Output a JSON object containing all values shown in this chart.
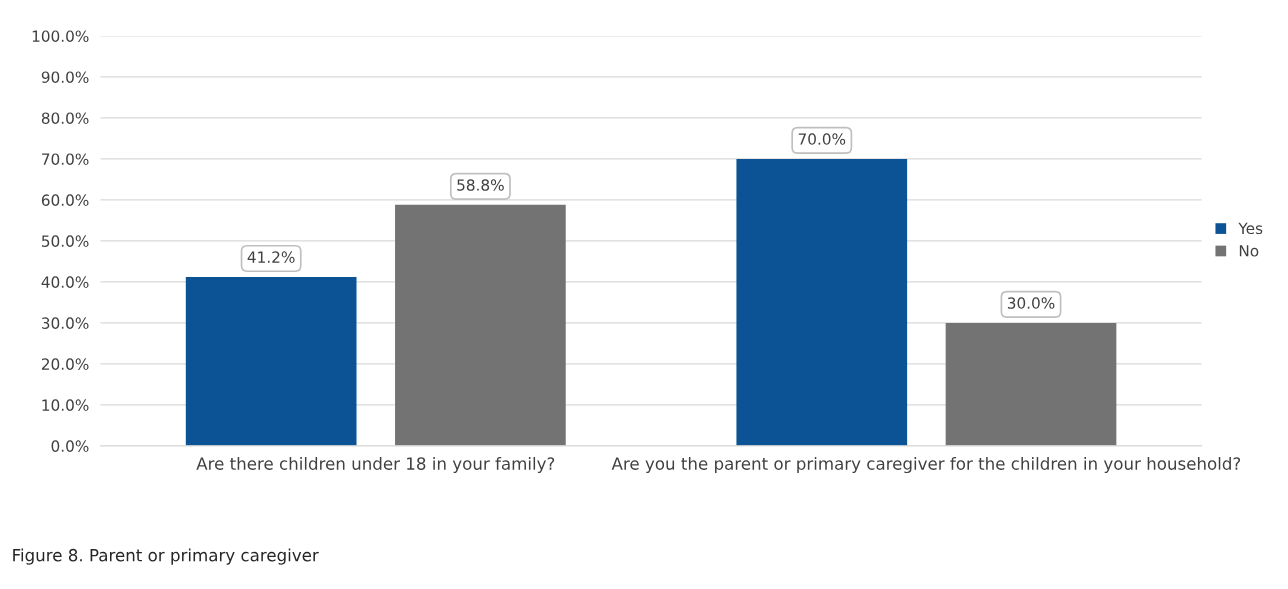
{
  "chart_data": {
    "type": "bar",
    "categories": [
      "Are there children under 18 in your family?",
      "Are you the parent or primary caregiver for the children in your household?"
    ],
    "series": [
      {
        "name": "Yes",
        "color": "#0b5394",
        "values": [
          41.2,
          70.0
        ],
        "value_labels": [
          "41.2%",
          "70.0%"
        ]
      },
      {
        "name": "No",
        "color": "#737373",
        "values": [
          58.8,
          30.0
        ],
        "value_labels": [
          "58.8%",
          "30.0%"
        ]
      }
    ],
    "ylim": [
      0,
      100
    ],
    "yticks": [
      {
        "value": 0,
        "label": "0.0%"
      },
      {
        "value": 10,
        "label": "10.0%"
      },
      {
        "value": 20,
        "label": "20.0%"
      },
      {
        "value": 30,
        "label": "30.0%"
      },
      {
        "value": 40,
        "label": "40.0%"
      },
      {
        "value": 50,
        "label": "50.0%"
      },
      {
        "value": 60,
        "label": "60.0%"
      },
      {
        "value": 70,
        "label": "70.0%"
      },
      {
        "value": 80,
        "label": "80.0%"
      },
      {
        "value": 90,
        "label": "90.0%"
      },
      {
        "value": 100,
        "label": "100.0%"
      }
    ],
    "grid": "y",
    "legend": "right",
    "annotations": [
      "Figure 8. Parent or primary caregiver"
    ]
  }
}
